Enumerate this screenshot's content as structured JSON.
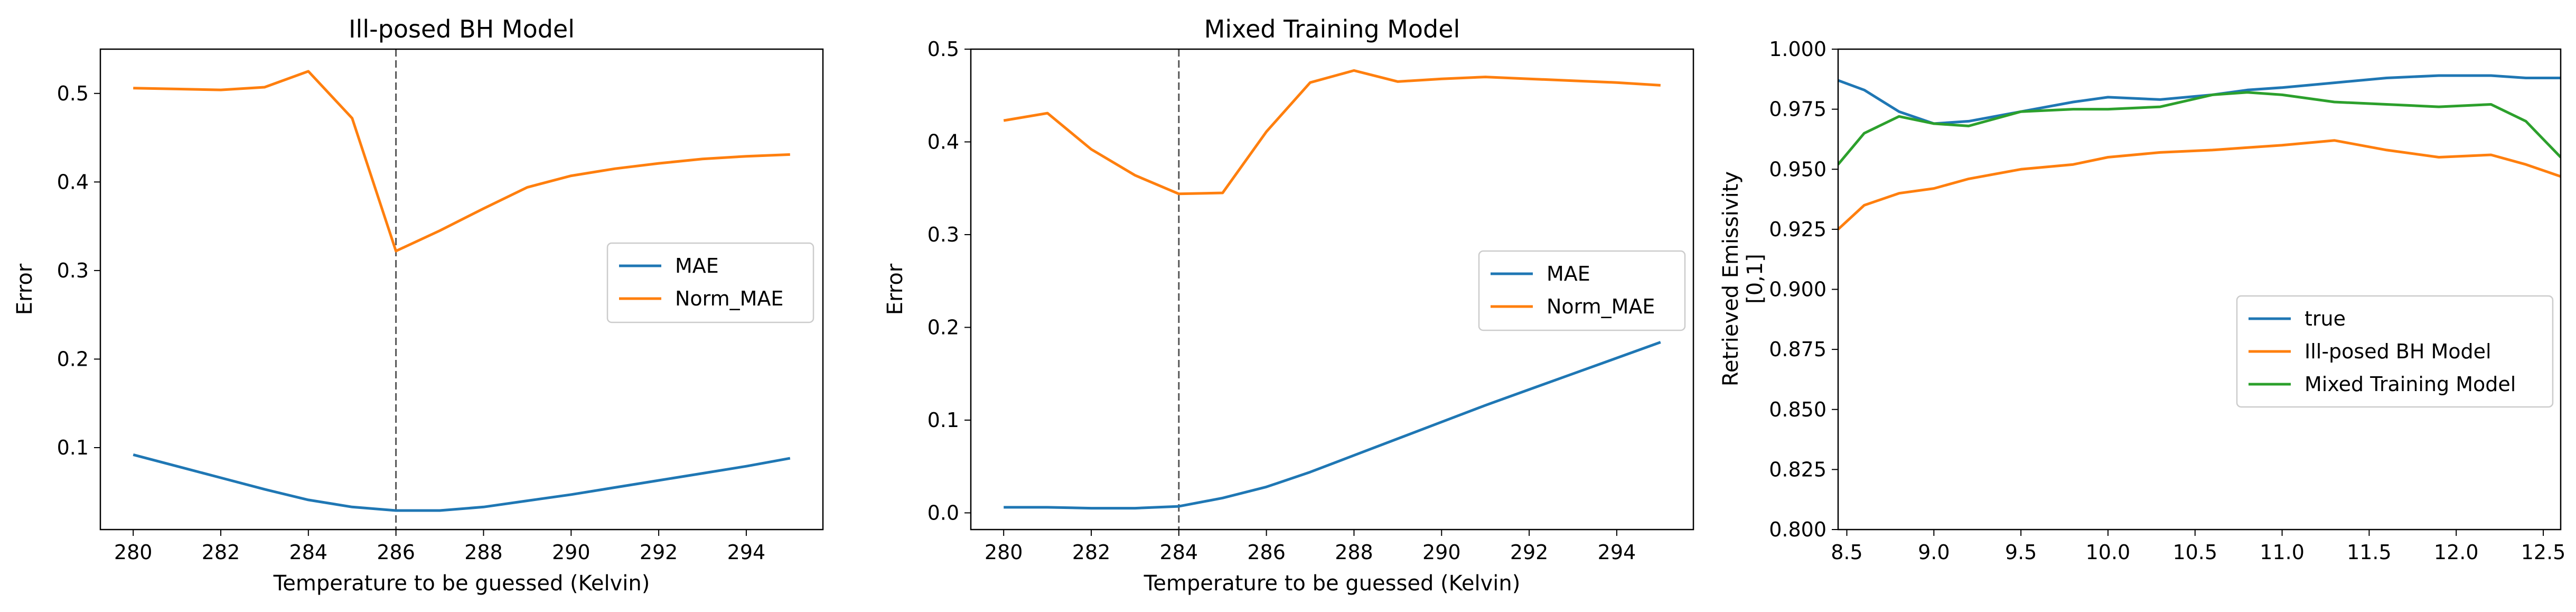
{
  "colors": {
    "MAE": "#1f77b4",
    "Norm_MAE": "#ff7f0e",
    "true": "#1f77b4",
    "Ill-posed BH Model": "#ff7f0e",
    "Mixed Training Model": "#2ca02c"
  },
  "chart_data": [
    {
      "type": "line",
      "title": "Ill-posed BH Model",
      "xlabel": "Temperature to be guessed (Kelvin)",
      "ylabel": "Error",
      "xlim": [
        279.25,
        295.75
      ],
      "ylim": [
        0.0075,
        0.55
      ],
      "xticks": [
        280,
        282,
        284,
        286,
        288,
        290,
        292,
        294
      ],
      "xtick_labels": [
        "280",
        "282",
        "284",
        "286",
        "288",
        "290",
        "292",
        "294"
      ],
      "yticks": [
        0.1,
        0.2,
        0.3,
        0.4,
        0.5
      ],
      "ytick_labels": [
        "0.1",
        "0.2",
        "0.3",
        "0.4",
        "0.5"
      ],
      "vline": 286,
      "legend": "center-right",
      "x": [
        280,
        281,
        282,
        283,
        284,
        285,
        286,
        287,
        288,
        289,
        290,
        291,
        292,
        293,
        294,
        295
      ],
      "series": [
        {
          "name": "MAE",
          "values": [
            0.092,
            0.079,
            0.066,
            0.053,
            0.041,
            0.033,
            0.029,
            0.029,
            0.033,
            0.04,
            0.047,
            0.055,
            0.063,
            0.071,
            0.079,
            0.088
          ]
        },
        {
          "name": "Norm_MAE",
          "values": [
            0.506,
            0.505,
            0.504,
            0.507,
            0.525,
            0.472,
            0.322,
            0.345,
            0.37,
            0.394,
            0.407,
            0.415,
            0.421,
            0.426,
            0.429,
            0.431
          ]
        }
      ]
    },
    {
      "type": "line",
      "title": "Mixed Training Model",
      "xlabel": "Temperature to be guessed (Kelvin)",
      "ylabel": "Error",
      "xlim": [
        279.25,
        295.75
      ],
      "ylim": [
        -0.018,
        0.5
      ],
      "xticks": [
        280,
        282,
        284,
        286,
        288,
        290,
        292,
        294
      ],
      "xtick_labels": [
        "280",
        "282",
        "284",
        "286",
        "288",
        "290",
        "292",
        "294"
      ],
      "yticks": [
        0.0,
        0.1,
        0.2,
        0.3,
        0.4,
        0.5
      ],
      "ytick_labels": [
        "0.0",
        "0.1",
        "0.2",
        "0.3",
        "0.4",
        "0.5"
      ],
      "vline": 284,
      "legend": "center-right",
      "x": [
        280,
        281,
        282,
        283,
        284,
        285,
        286,
        287,
        288,
        289,
        290,
        291,
        292,
        293,
        294,
        295
      ],
      "series": [
        {
          "name": "MAE",
          "values": [
            0.006,
            0.006,
            0.005,
            0.005,
            0.007,
            0.016,
            0.028,
            0.044,
            0.062,
            0.08,
            0.098,
            0.116,
            0.133,
            0.15,
            0.167,
            0.184
          ]
        },
        {
          "name": "Norm_MAE",
          "values": [
            0.423,
            0.431,
            0.392,
            0.364,
            0.344,
            0.345,
            0.411,
            0.464,
            0.477,
            0.465,
            0.468,
            0.47,
            0.468,
            0.466,
            0.464,
            0.461
          ]
        }
      ]
    },
    {
      "type": "line",
      "title": "",
      "xlabel": "",
      "ylabel_lines": [
        "Retrieved Emissivity",
        "[0,1]"
      ],
      "xlim": [
        8.45,
        12.6
      ],
      "ylim": [
        0.8,
        1.0
      ],
      "xticks": [
        8.5,
        9.0,
        9.5,
        10.0,
        10.5,
        11.0,
        11.5,
        12.0,
        12.5
      ],
      "xtick_labels": [
        "8.5",
        "9.0",
        "9.5",
        "10.0",
        "10.5",
        "11.0",
        "11.5",
        "12.0",
        "12.5"
      ],
      "yticks": [
        0.8,
        0.825,
        0.85,
        0.875,
        0.9,
        0.925,
        0.95,
        0.975,
        1.0
      ],
      "ytick_labels": [
        "0.800",
        "0.825",
        "0.850",
        "0.875",
        "0.900",
        "0.925",
        "0.950",
        "0.975",
        "1.000"
      ],
      "legend": "center-right",
      "x": [
        8.45,
        8.6,
        8.8,
        9.0,
        9.2,
        9.5,
        9.8,
        10.0,
        10.3,
        10.6,
        10.8,
        11.0,
        11.3,
        11.6,
        11.9,
        12.2,
        12.4,
        12.6
      ],
      "series": [
        {
          "name": "true",
          "values": [
            0.987,
            0.983,
            0.974,
            0.969,
            0.97,
            0.974,
            0.978,
            0.98,
            0.979,
            0.981,
            0.983,
            0.984,
            0.986,
            0.988,
            0.989,
            0.989,
            0.988,
            0.988
          ]
        },
        {
          "name": "Ill-posed BH Model",
          "values": [
            0.925,
            0.935,
            0.94,
            0.942,
            0.946,
            0.95,
            0.952,
            0.955,
            0.957,
            0.958,
            0.959,
            0.96,
            0.962,
            0.958,
            0.955,
            0.956,
            0.952,
            0.947
          ]
        },
        {
          "name": "Mixed Training Model",
          "values": [
            0.952,
            0.965,
            0.972,
            0.969,
            0.968,
            0.974,
            0.975,
            0.975,
            0.976,
            0.981,
            0.982,
            0.981,
            0.978,
            0.977,
            0.976,
            0.977,
            0.97,
            0.955
          ]
        }
      ]
    }
  ]
}
